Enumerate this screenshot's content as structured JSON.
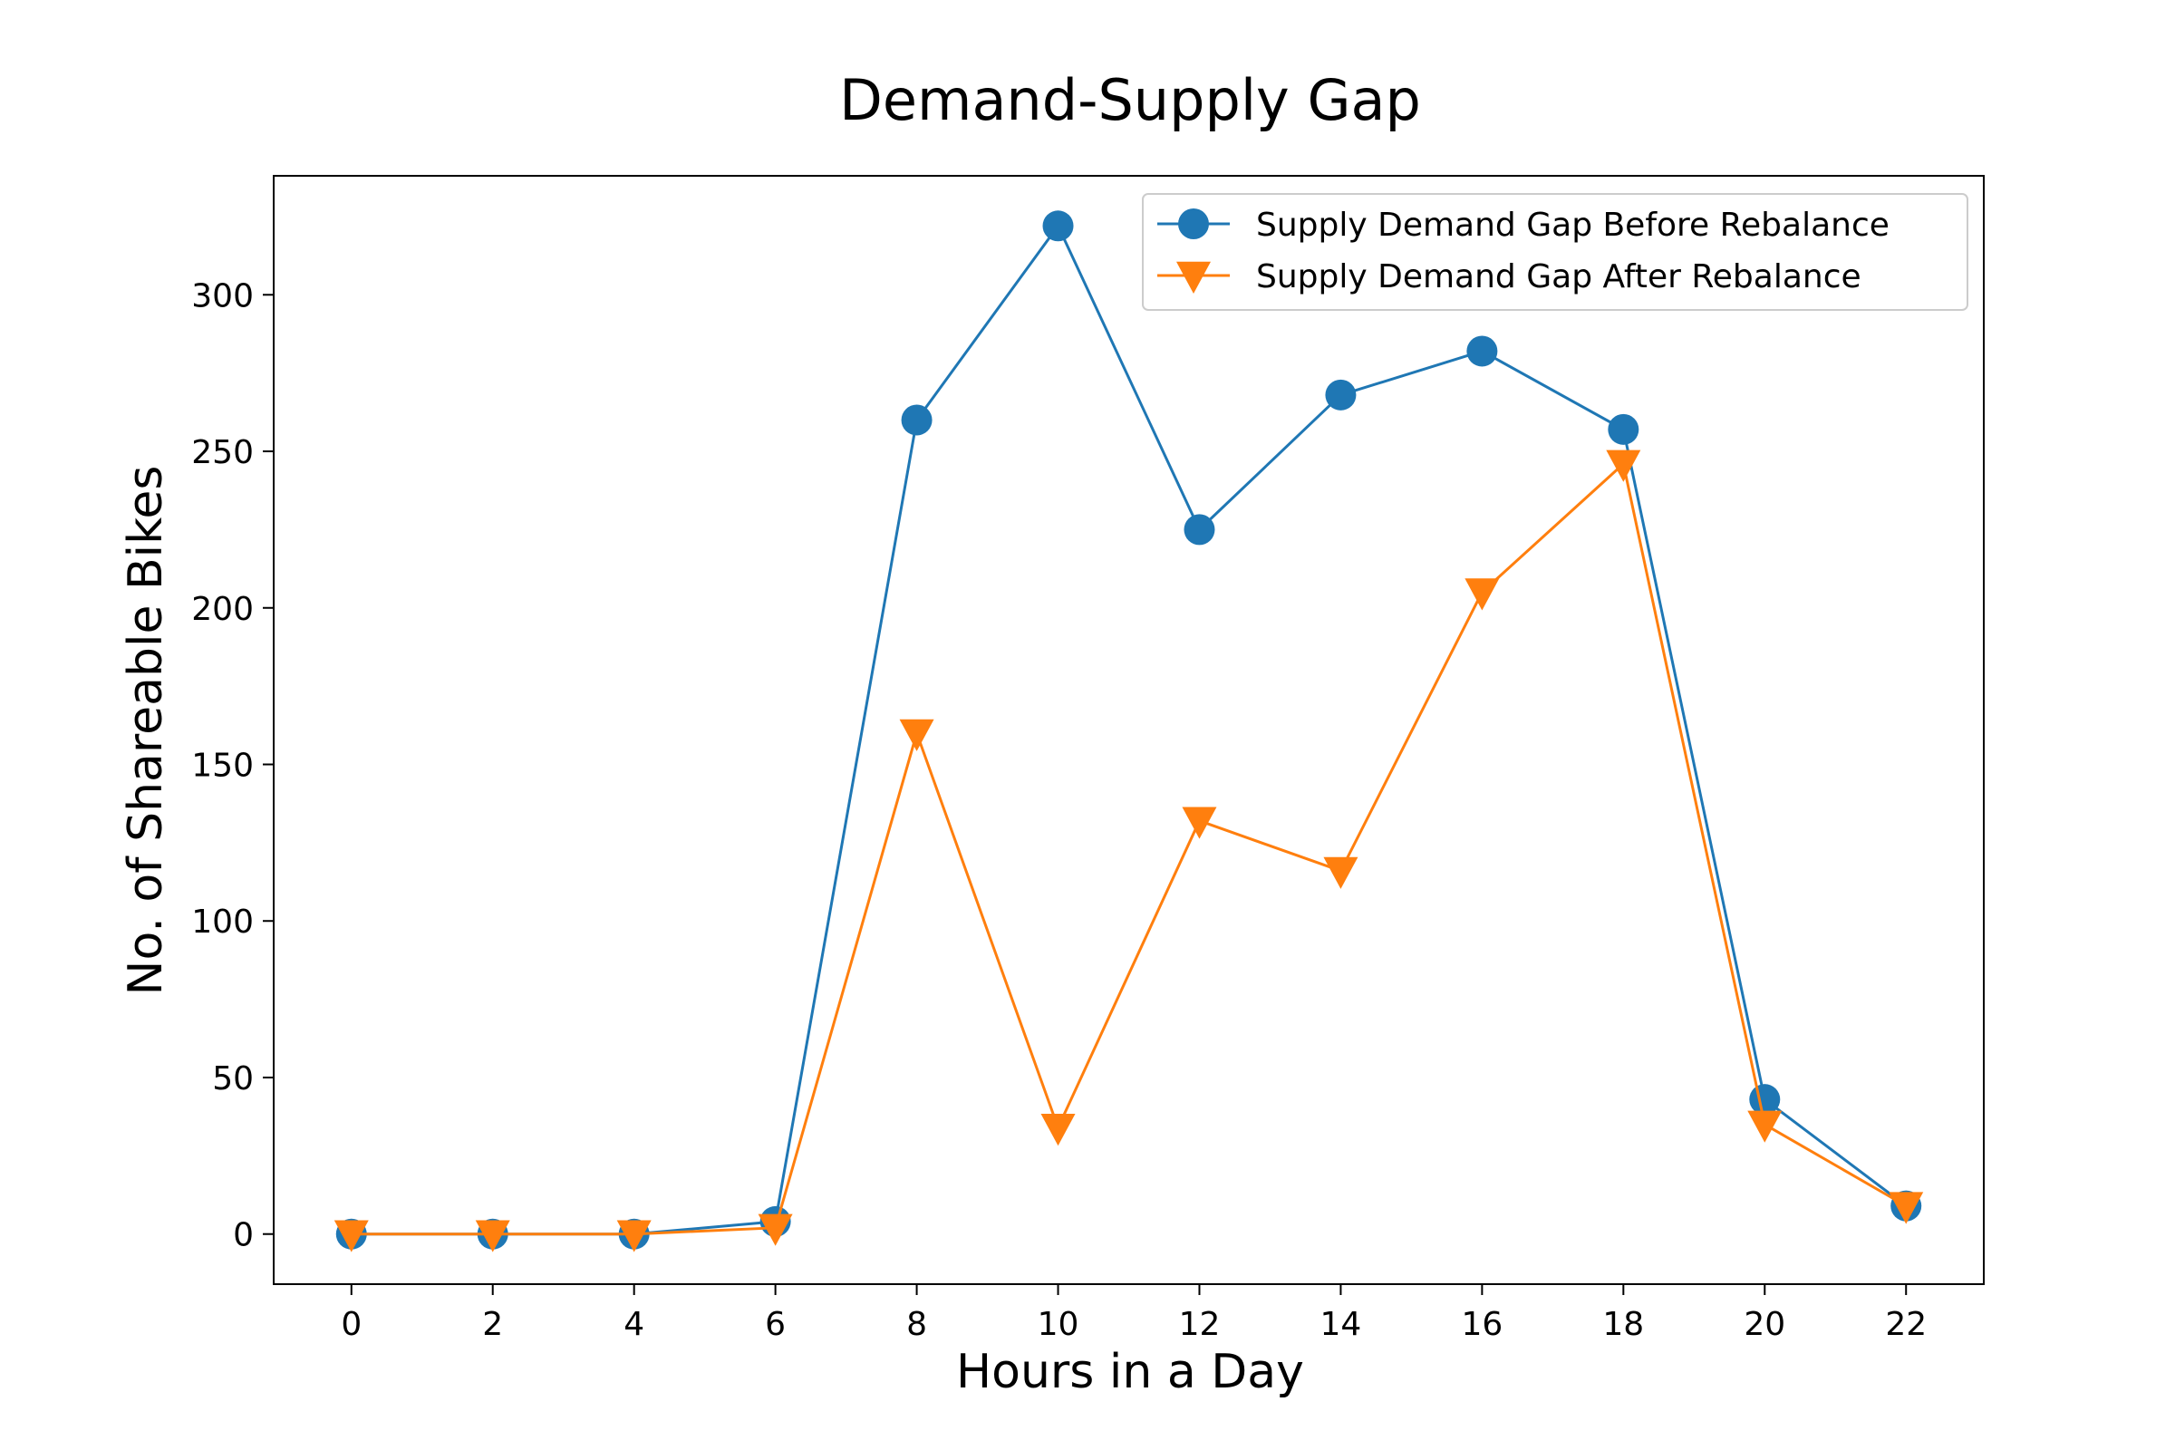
{
  "chart_data": {
    "type": "line",
    "title": "Demand-Supply Gap",
    "xlabel": "Hours in a Day",
    "ylabel": "No. of Shareable Bikes",
    "x": [
      0,
      2,
      4,
      6,
      8,
      10,
      12,
      14,
      16,
      18,
      20,
      22
    ],
    "xticks": [
      "0",
      "2",
      "4",
      "6",
      "8",
      "10",
      "12",
      "14",
      "16",
      "18",
      "20",
      "22"
    ],
    "yticks": [
      "0",
      "50",
      "100",
      "150",
      "200",
      "250",
      "300"
    ],
    "xlim": [
      -1.1,
      23.1
    ],
    "ylim": [
      -16,
      338
    ],
    "grid": false,
    "legend_position": "upper-right",
    "series": [
      {
        "name": "Supply Demand Gap Before Rebalance",
        "color": "#1f77b4",
        "marker": "circle",
        "values": [
          0,
          0,
          0,
          4,
          260,
          322,
          225,
          268,
          282,
          257,
          43,
          9
        ]
      },
      {
        "name": "Supply Demand Gap After Rebalance",
        "color": "#ff7f0e",
        "marker": "triangle-down",
        "values": [
          0,
          0,
          0,
          2,
          160,
          34,
          132,
          116,
          205,
          246,
          35,
          9
        ]
      }
    ]
  }
}
